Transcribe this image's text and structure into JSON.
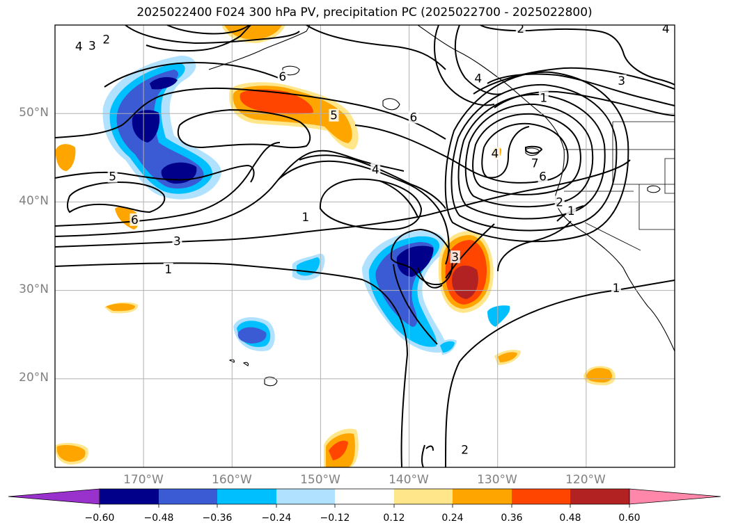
{
  "title": "2025022400 F024 300 hPa PV, precipitation PC (2025022700 - 2025022800)",
  "lat_labels": [
    "50°N",
    "40°N",
    "30°N",
    "20°N"
  ],
  "lon_labels": [
    "170°W",
    "160°W",
    "150°W",
    "140°W",
    "130°W",
    "120°W"
  ],
  "colorbar": {
    "ticks": [
      "−0.60",
      "−0.48",
      "−0.36",
      "−0.24",
      "−0.12",
      "0.12",
      "0.24",
      "0.36",
      "0.48",
      "0.60"
    ],
    "colors": [
      "#9932cc",
      "#00008b",
      "#3b5bd4",
      "#00bfff",
      "#b0e2ff",
      "#ffffff",
      "#ffe68a",
      "#ffa500",
      "#ff4500",
      "#b22222",
      "#ff88aa"
    ]
  },
  "chart_data": {
    "type": "contour map",
    "title": "2025022400 F024 300 hPa PV, precipitation PC (2025022700 - 2025022800)",
    "projection_extent": {
      "lon": [
        -180,
        -110
      ],
      "lat": [
        10,
        60
      ]
    },
    "gridlines": true,
    "contour_field": "300 hPa PV",
    "contour_labels": [
      {
        "label": "2",
        "lon": -174.2,
        "lat": 58.4
      },
      {
        "label": "3",
        "lon": -175.8,
        "lat": 57.7
      },
      {
        "label": "4",
        "lon": -177.3,
        "lat": 57.6
      },
      {
        "label": "2",
        "lon": -127.4,
        "lat": 59.6
      },
      {
        "label": "4",
        "lon": -111.0,
        "lat": 59.6
      },
      {
        "label": "6",
        "lon": -154.3,
        "lat": 54.2
      },
      {
        "label": "6",
        "lon": -139.5,
        "lat": 49.6
      },
      {
        "label": "5",
        "lon": -148.5,
        "lat": 49.8
      },
      {
        "label": "1",
        "lon": -124.8,
        "lat": 51.8
      },
      {
        "label": "3",
        "lon": -116.0,
        "lat": 53.7
      },
      {
        "label": "4",
        "lon": -132.2,
        "lat": 54.0
      },
      {
        "label": "4",
        "lon": -130.3,
        "lat": 45.5
      },
      {
        "label": "7",
        "lon": -125.8,
        "lat": 44.4
      },
      {
        "label": "6",
        "lon": -124.9,
        "lat": 42.9
      },
      {
        "label": "4",
        "lon": -143.8,
        "lat": 43.7
      },
      {
        "label": "5",
        "lon": -173.5,
        "lat": 42.9
      },
      {
        "label": "6",
        "lon": -171.0,
        "lat": 38.0
      },
      {
        "label": "3",
        "lon": -166.2,
        "lat": 35.6
      },
      {
        "label": "1",
        "lon": -167.2,
        "lat": 32.4
      },
      {
        "label": "1",
        "lon": -151.7,
        "lat": 38.3
      },
      {
        "label": "2",
        "lon": -123.0,
        "lat": 40.0
      },
      {
        "label": "1",
        "lon": -121.7,
        "lat": 39.0
      },
      {
        "label": "3",
        "lon": -134.8,
        "lat": 33.8
      },
      {
        "label": "1",
        "lon": -116.6,
        "lat": 30.3
      },
      {
        "label": "2",
        "lon": -133.7,
        "lat": 12.0
      }
    ],
    "fill_field": "precipitation PC",
    "colorbar_levels": [
      -0.6,
      -0.48,
      -0.36,
      -0.24,
      -0.12,
      0.12,
      0.24,
      0.36,
      0.48,
      0.6
    ],
    "colorbar_extend": "both"
  }
}
